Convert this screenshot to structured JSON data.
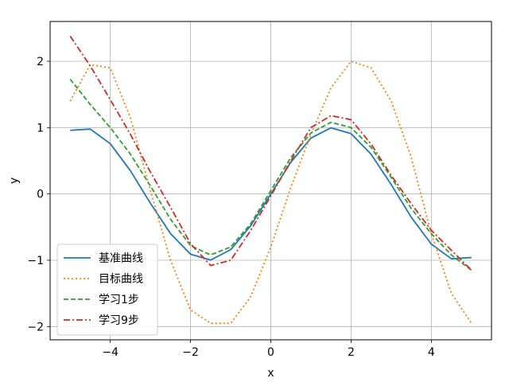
{
  "chart_data": {
    "type": "line",
    "xlabel": "x",
    "ylabel": "y",
    "xlim": [
      -5.5,
      5.5
    ],
    "ylim": [
      -2.2,
      2.6
    ],
    "xticks": [
      -4,
      -2,
      0,
      2,
      4
    ],
    "yticks": [
      -2,
      -1,
      0,
      1,
      2
    ],
    "grid": true,
    "legend_position": "lower-left",
    "x": [
      -5.0,
      -4.5,
      -4.0,
      -3.5,
      -3.0,
      -2.5,
      -2.0,
      -1.5,
      -1.0,
      -0.5,
      0.0,
      0.5,
      1.0,
      1.5,
      2.0,
      2.5,
      3.0,
      3.5,
      4.0,
      4.5,
      5.0
    ],
    "series": [
      {
        "name": "基准曲线",
        "color": "#1f77b4",
        "dash": "solid",
        "values": [
          0.959,
          0.978,
          0.757,
          0.351,
          -0.141,
          -0.598,
          -0.909,
          -0.997,
          -0.841,
          -0.479,
          0.0,
          0.479,
          0.841,
          0.997,
          0.909,
          0.598,
          0.141,
          -0.351,
          -0.757,
          -0.978,
          -0.959
        ]
      },
      {
        "name": "目标曲线",
        "color": "#ff7f0e",
        "dash": "dotted",
        "values": [
          1.4,
          1.95,
          1.9,
          1.15,
          0.05,
          -1.0,
          -1.75,
          -1.95,
          -1.95,
          -1.55,
          -0.8,
          0.1,
          0.9,
          1.6,
          2.0,
          1.9,
          1.4,
          0.55,
          -0.6,
          -1.5,
          -1.95
        ]
      },
      {
        "name": "学习1步",
        "color": "#2ca02c",
        "dash": "dashed",
        "values": [
          1.73,
          1.35,
          1.0,
          0.6,
          0.12,
          -0.38,
          -0.78,
          -0.92,
          -0.8,
          -0.45,
          0.05,
          0.55,
          0.92,
          1.08,
          1.0,
          0.7,
          0.25,
          -0.22,
          -0.6,
          -0.92,
          -1.15
        ]
      },
      {
        "name": "学习9步",
        "color": "#d62728",
        "dash": "dashdot",
        "values": [
          2.38,
          1.93,
          1.42,
          0.9,
          0.33,
          -0.2,
          -0.75,
          -1.08,
          -1.0,
          -0.55,
          -0.03,
          0.5,
          1.0,
          1.18,
          1.12,
          0.75,
          0.28,
          -0.15,
          -0.55,
          -0.85,
          -1.15
        ]
      }
    ]
  }
}
